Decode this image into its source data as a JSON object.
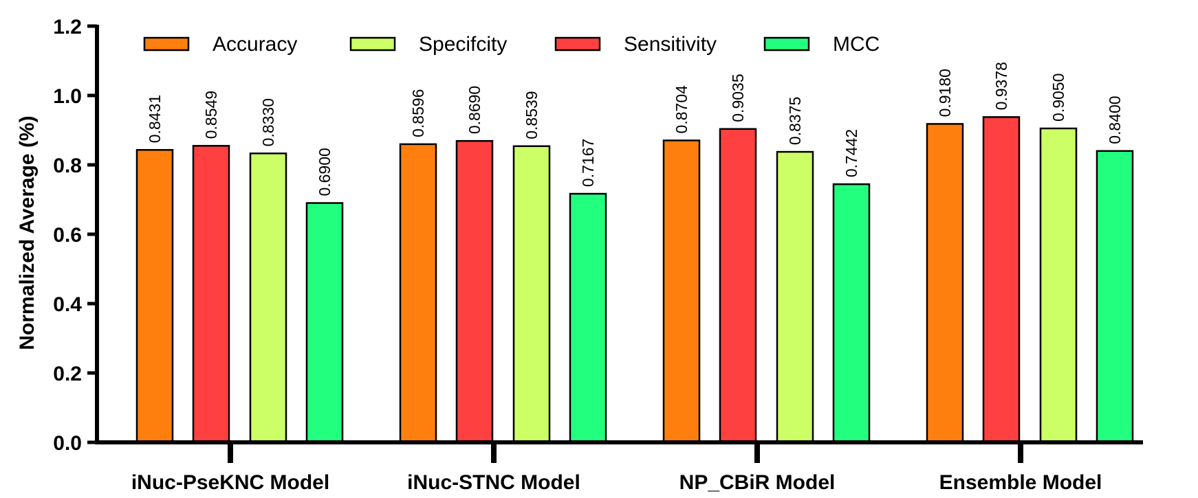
{
  "chart_data": {
    "type": "bar",
    "title": "",
    "xlabel": "",
    "ylabel": "Normalized Average (%)",
    "ylim": [
      0,
      1.2
    ],
    "yticks": [
      "0.0",
      "0.2",
      "0.4",
      "0.6",
      "0.8",
      "1.0",
      "1.2"
    ],
    "grid": false,
    "legend_position": "top",
    "categories": [
      "iNuc-PseKNC Model",
      "iNuc-STNC Model",
      "NP_CBiR Model",
      "Ensemble Model"
    ],
    "series": [
      {
        "name": "Accuracy",
        "color": "#FF7F0E",
        "values": [
          0.8431,
          0.8596,
          0.8704,
          0.918
        ],
        "labels": [
          "0.8431",
          "0.8596",
          "0.8704",
          "0.9180"
        ]
      },
      {
        "name": "Sensitivity",
        "color": "#FF4040",
        "values": [
          0.8549,
          0.869,
          0.9035,
          0.9378
        ],
        "labels": [
          "0.8549",
          "0.8690",
          "0.9035",
          "0.9378"
        ]
      },
      {
        "name": "Specifcity",
        "color": "#CCFF66",
        "values": [
          0.833,
          0.8539,
          0.8375,
          0.905
        ],
        "labels": [
          "0.8330",
          "0.8539",
          "0.8375",
          "0.9050"
        ]
      },
      {
        "name": "MCC",
        "color": "#22FF7F",
        "values": [
          0.69,
          0.7167,
          0.7442,
          0.84
        ],
        "labels": [
          "0.6900",
          "0.7167",
          "0.7442",
          "0.8400"
        ]
      }
    ],
    "legend_order": [
      "Accuracy",
      "Specifcity",
      "Sensitivity",
      "MCC"
    ]
  }
}
